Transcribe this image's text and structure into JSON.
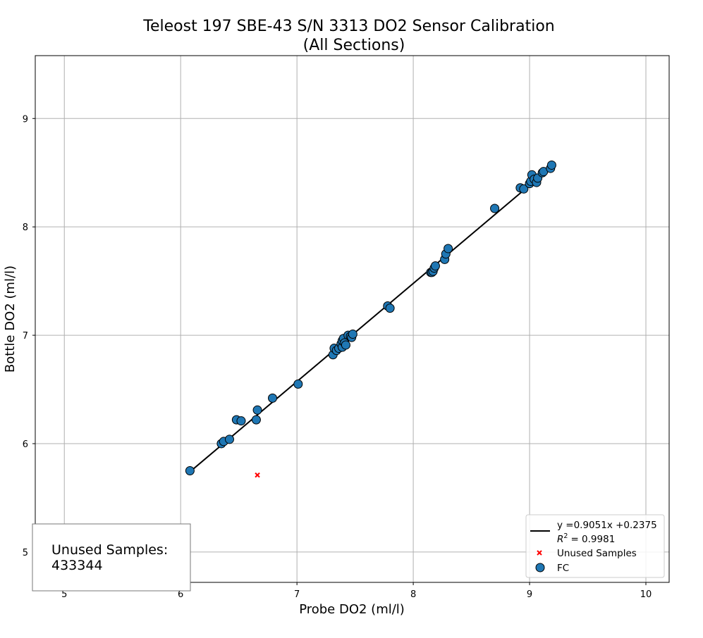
{
  "chart_data": {
    "type": "scatter",
    "title": "Teleost 197 SBE-43 S/N 3313 DO2 Sensor Calibration",
    "subtitle": "(All Sections)",
    "xlabel": "Probe DO2 (ml/l)",
    "ylabel": "Bottle DO2 (ml/l)",
    "xlim": [
      4.75,
      10.2
    ],
    "ylim": [
      4.72,
      9.58
    ],
    "xticks": [
      5,
      6,
      7,
      8,
      9,
      10
    ],
    "yticks": [
      5,
      6,
      7,
      8,
      9
    ],
    "grid": true,
    "legend_placement": "lower right",
    "fit": {
      "label_line1": "y =0.9051x +0.2375",
      "label_line2": "= 0.9981",
      "r2_prefix": "R",
      "r2_sup": "2",
      "slope": 0.9051,
      "intercept": 0.2375,
      "x_range": [
        6.08,
        9.2
      ],
      "color": "#000000"
    },
    "series": [
      {
        "name": "FC",
        "marker": "circle",
        "color": "#1f77b4",
        "edge_color": "#000000",
        "points": [
          [
            6.08,
            5.75
          ],
          [
            6.35,
            6.0
          ],
          [
            6.37,
            6.02
          ],
          [
            6.42,
            6.04
          ],
          [
            6.48,
            6.22
          ],
          [
            6.52,
            6.21
          ],
          [
            6.65,
            6.22
          ],
          [
            6.66,
            6.31
          ],
          [
            6.79,
            6.42
          ],
          [
            7.01,
            6.55
          ],
          [
            7.31,
            6.82
          ],
          [
            7.32,
            6.88
          ],
          [
            7.34,
            6.86
          ],
          [
            7.36,
            6.88
          ],
          [
            7.38,
            6.92
          ],
          [
            7.39,
            6.89
          ],
          [
            7.39,
            6.95
          ],
          [
            7.4,
            6.97
          ],
          [
            7.41,
            6.93
          ],
          [
            7.42,
            6.91
          ],
          [
            7.44,
            7.0
          ],
          [
            7.46,
            6.99
          ],
          [
            7.47,
            6.98
          ],
          [
            7.48,
            7.01
          ],
          [
            7.78,
            7.27
          ],
          [
            7.8,
            7.25
          ],
          [
            8.15,
            7.58
          ],
          [
            8.16,
            7.58
          ],
          [
            8.17,
            7.59
          ],
          [
            8.18,
            7.62
          ],
          [
            8.19,
            7.64
          ],
          [
            8.27,
            7.7
          ],
          [
            8.28,
            7.75
          ],
          [
            8.3,
            7.8
          ],
          [
            8.7,
            8.17
          ],
          [
            8.92,
            8.36
          ],
          [
            8.95,
            8.35
          ],
          [
            9.0,
            8.4
          ],
          [
            9.01,
            8.42
          ],
          [
            9.02,
            8.48
          ],
          [
            9.04,
            8.44
          ],
          [
            9.06,
            8.41
          ],
          [
            9.07,
            8.45
          ],
          [
            9.11,
            8.5
          ],
          [
            9.12,
            8.51
          ],
          [
            9.18,
            8.54
          ],
          [
            9.19,
            8.57
          ]
        ]
      },
      {
        "name": "Unused Samples",
        "marker": "x",
        "color": "#ff0000",
        "points": [
          [
            6.66,
            5.71
          ]
        ]
      }
    ],
    "annotation": {
      "line1": "Unused Samples:",
      "line2": "433344"
    }
  }
}
